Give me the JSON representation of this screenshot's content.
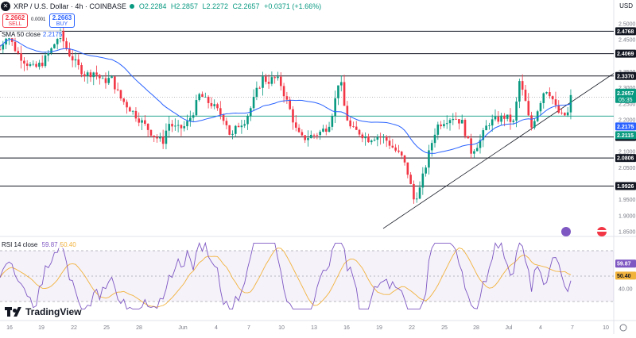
{
  "header": {
    "symbol": "XRP / U.S. Dollar · 4h · COINBASE",
    "open": "O2.2284",
    "high": "H2.2857",
    "low": "L2.2272",
    "close": "C2.2657",
    "change": "+0.0371 (+1.66%)",
    "sell_price": "2.2662",
    "sell_label": "SELL",
    "buy_price": "2.2663",
    "buy_label": "BUY",
    "spread": "0.0001",
    "currency": "USD"
  },
  "colors": {
    "up": "#089981",
    "down": "#f23645",
    "sma": "#2962ff",
    "rsi": "#7e57c2",
    "rsi_ma": "#f2b33d",
    "hline": "#131722",
    "support": "#089981"
  },
  "branding": "TradingView",
  "chart_data": [
    {
      "type": "candlestick",
      "title": "XRP / U.S. Dollar · 4h · COINBASE",
      "indicator": "SMA 50 close",
      "indicator_value": "2.2175",
      "y_ticks": [
        "2.5000",
        "2.4500",
        "2.3500",
        "2.3000",
        "2.2500",
        "2.2000",
        "2.1000",
        "2.0500",
        "1.9500",
        "1.9000",
        "1.8500"
      ],
      "x_ticks": [
        "16",
        "19",
        "22",
        "25",
        "28",
        "Jun",
        "4",
        "7",
        "10",
        "13",
        "16",
        "19",
        "22",
        "25",
        "28",
        "Jul",
        "4",
        "7",
        "10"
      ],
      "ylim": [
        1.84,
        2.53
      ],
      "levels": [
        {
          "label": "2.4768",
          "value": 2.4768
        },
        {
          "label": "2.4069",
          "value": 2.4069
        },
        {
          "label": "2.3370",
          "value": 2.337
        },
        {
          "label": "2.1463",
          "value": 2.1463
        },
        {
          "label": "2.0806",
          "value": 2.0806
        },
        {
          "label": "1.9926",
          "value": 1.9926
        }
      ],
      "support_line": {
        "label": "2.2115",
        "value": 2.2115
      },
      "price_label": {
        "value": "2.2657",
        "countdown": "05:35"
      },
      "sma_label": "2.2175",
      "trendline": [
        [
          0.0,
          1.86
        ],
        [
          1.0,
          2.345
        ]
      ],
      "price_path": [
        [
          0,
          2.42
        ],
        [
          0.012,
          2.47
        ],
        [
          0.03,
          2.41
        ],
        [
          0.045,
          2.38
        ],
        [
          0.06,
          2.36
        ],
        [
          0.075,
          2.38
        ],
        [
          0.09,
          2.42
        ],
        [
          0.105,
          2.47
        ],
        [
          0.12,
          2.41
        ],
        [
          0.135,
          2.37
        ],
        [
          0.15,
          2.34
        ],
        [
          0.165,
          2.35
        ],
        [
          0.18,
          2.32
        ],
        [
          0.195,
          2.33
        ],
        [
          0.21,
          2.27
        ],
        [
          0.225,
          2.24
        ],
        [
          0.24,
          2.21
        ],
        [
          0.255,
          2.18
        ],
        [
          0.27,
          2.15
        ],
        [
          0.285,
          2.13
        ],
        [
          0.295,
          2.19
        ],
        [
          0.31,
          2.17
        ],
        [
          0.325,
          2.18
        ],
        [
          0.34,
          2.23
        ],
        [
          0.35,
          2.28
        ],
        [
          0.36,
          2.26
        ],
        [
          0.37,
          2.25
        ],
        [
          0.385,
          2.22
        ],
        [
          0.395,
          2.2
        ],
        [
          0.405,
          2.14
        ],
        [
          0.415,
          2.18
        ],
        [
          0.43,
          2.2
        ],
        [
          0.44,
          2.24
        ],
        [
          0.45,
          2.29
        ],
        [
          0.46,
          2.33
        ],
        [
          0.47,
          2.32
        ],
        [
          0.48,
          2.33
        ],
        [
          0.49,
          2.32
        ],
        [
          0.5,
          2.27
        ],
        [
          0.51,
          2.22
        ],
        [
          0.52,
          2.16
        ],
        [
          0.53,
          2.14
        ],
        [
          0.545,
          2.15
        ],
        [
          0.56,
          2.16
        ],
        [
          0.575,
          2.18
        ],
        [
          0.585,
          2.24
        ],
        [
          0.595,
          2.34
        ],
        [
          0.605,
          2.22
        ],
        [
          0.615,
          2.17
        ],
        [
          0.63,
          2.16
        ],
        [
          0.645,
          2.14
        ],
        [
          0.66,
          2.15
        ],
        [
          0.675,
          2.14
        ],
        [
          0.69,
          2.11
        ],
        [
          0.705,
          2.08
        ],
        [
          0.715,
          2.03
        ],
        [
          0.725,
          1.95
        ],
        [
          0.735,
          1.98
        ],
        [
          0.745,
          2.05
        ],
        [
          0.755,
          2.12
        ],
        [
          0.765,
          2.18
        ],
        [
          0.78,
          2.2
        ],
        [
          0.795,
          2.21
        ],
        [
          0.81,
          2.19
        ],
        [
          0.825,
          2.1
        ],
        [
          0.84,
          2.13
        ],
        [
          0.855,
          2.19
        ],
        [
          0.87,
          2.2
        ],
        [
          0.885,
          2.21
        ],
        [
          0.9,
          2.19
        ],
        [
          0.91,
          2.32
        ],
        [
          0.92,
          2.26
        ],
        [
          0.93,
          2.17
        ],
        [
          0.945,
          2.25
        ],
        [
          0.955,
          2.3
        ],
        [
          0.965,
          2.28
        ],
        [
          0.975,
          2.23
        ],
        [
          0.985,
          2.21
        ],
        [
          0.995,
          2.22
        ],
        [
          1.0,
          2.27
        ]
      ]
    },
    {
      "type": "line",
      "title": "RSI 14 close",
      "series": [
        {
          "name": "RSI",
          "value": "59.87"
        },
        {
          "name": "RSI-based MA",
          "value": "50.40"
        }
      ],
      "y_ticks": [
        "40.00"
      ],
      "bands": [
        70,
        30
      ],
      "ylim": [
        20,
        80
      ],
      "rsi_labels": [
        "59.87",
        "50.40"
      ]
    }
  ]
}
